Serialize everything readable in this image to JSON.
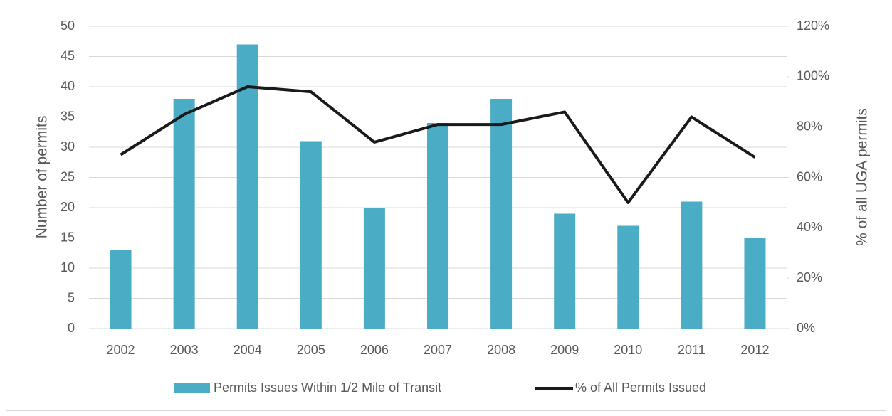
{
  "chart_data": {
    "type": "bar_line",
    "categories": [
      "2002",
      "2003",
      "2004",
      "2005",
      "2006",
      "2007",
      "2008",
      "2009",
      "2010",
      "2011",
      "2012"
    ],
    "series": [
      {
        "name": "Permits Issues Within 1/2 Mile of Transit",
        "type": "bar",
        "color": "#4bacc6",
        "values": [
          13,
          38,
          47,
          31,
          20,
          34,
          38,
          19,
          17,
          21,
          15
        ]
      },
      {
        "name": "% of All Permits Issued",
        "type": "line",
        "color": "#1a1a1a",
        "axis": "y2",
        "values": [
          69,
          85,
          96,
          94,
          74,
          81,
          81,
          86,
          50,
          84,
          68
        ]
      }
    ],
    "ylabel": "Number of permits",
    "y2label": "% of all UGA permits",
    "ylim": [
      0,
      50
    ],
    "yticks": [
      0,
      5,
      10,
      15,
      20,
      25,
      30,
      35,
      40,
      45,
      50
    ],
    "y2lim": [
      0,
      120
    ],
    "y2ticks": [
      {
        "value": 0,
        "label": "0%"
      },
      {
        "value": 20,
        "label": "20%"
      },
      {
        "value": 40,
        "label": "40%"
      },
      {
        "value": 60,
        "label": "60%"
      },
      {
        "value": 80,
        "label": "80%"
      },
      {
        "value": 100,
        "label": "100%"
      },
      {
        "value": 120,
        "label": "120%"
      }
    ],
    "grid": true,
    "legend": "bottom"
  }
}
